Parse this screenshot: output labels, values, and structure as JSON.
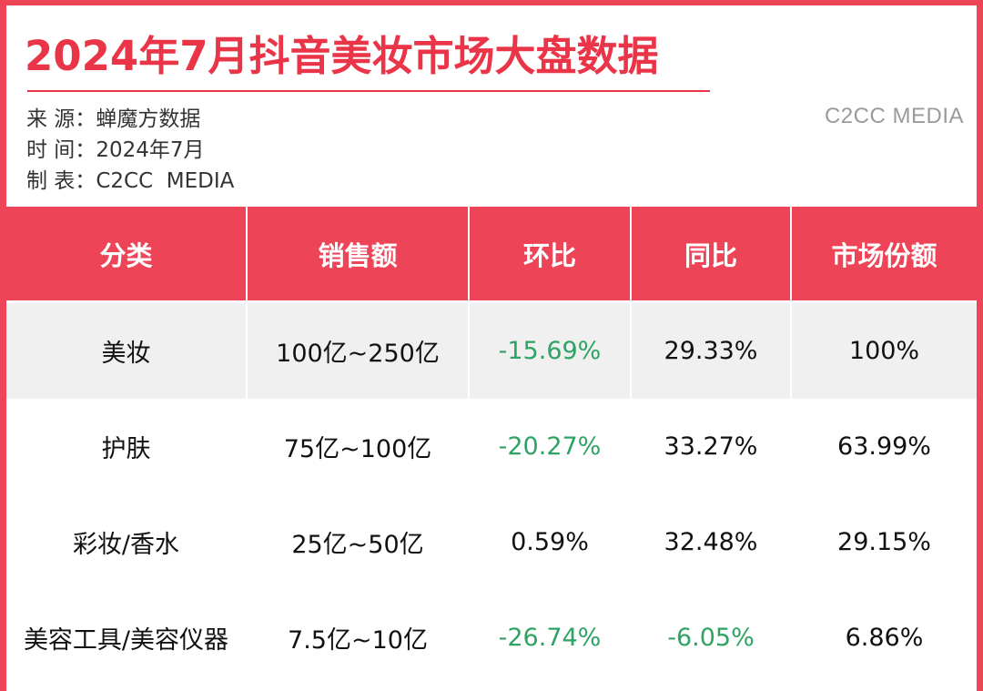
{
  "title": "2024年7月抖音美妆市场大盘数据",
  "meta": {
    "source_label": "来 源：",
    "source_value": "蝉魔方数据",
    "time_label": "时 间：",
    "time_value": "2024年7月",
    "maker_label": "制 表：",
    "maker_value": "C2CC  MEDIA"
  },
  "watermark": "C2CC MEDIA",
  "colors": {
    "brand_red": "#ee4458",
    "negative_green": "#2ea364"
  },
  "table": {
    "headers": [
      "分类",
      "销售额",
      "环比",
      "同比",
      "市场份额"
    ],
    "rows": [
      {
        "category": "美妆",
        "sales": "100亿~250亿",
        "mom": "-15.69%",
        "yoy": "29.33%",
        "share": "100%"
      },
      {
        "category": "护肤",
        "sales": "75亿~100亿",
        "mom": "-20.27%",
        "yoy": "33.27%",
        "share": "63.99%"
      },
      {
        "category": "彩妆/香水",
        "sales": "25亿~50亿",
        "mom": "0.59%",
        "yoy": "32.48%",
        "share": "29.15%"
      },
      {
        "category": "美容工具/美容仪器",
        "sales": "7.5亿~10亿",
        "mom": "-26.74%",
        "yoy": "-6.05%",
        "share": "6.86%"
      }
    ]
  }
}
